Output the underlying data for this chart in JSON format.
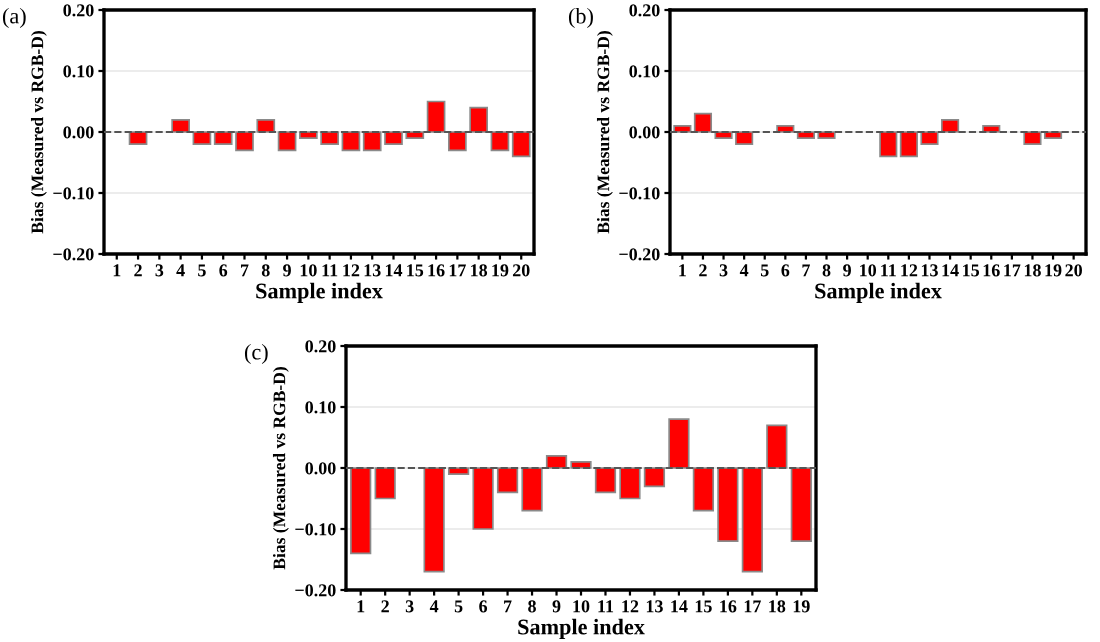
{
  "chart_data": [
    {
      "type": "bar",
      "title": "(a)",
      "xlabel": "Sample index",
      "ylabel": "Bias (Measured vs RGB-D)",
      "categories": [
        "1",
        "2",
        "3",
        "4",
        "5",
        "6",
        "7",
        "8",
        "9",
        "10",
        "11",
        "12",
        "13",
        "14",
        "15",
        "16",
        "17",
        "18",
        "19",
        "20"
      ],
      "values": [
        0,
        -0.02,
        0,
        0.02,
        -0.02,
        -0.02,
        -0.03,
        0.02,
        -0.03,
        -0.01,
        -0.02,
        -0.03,
        -0.03,
        -0.02,
        -0.01,
        0.05,
        -0.03,
        0.04,
        -0.03,
        -0.04
      ],
      "color": "#ff0000",
      "ylim": [
        -0.2,
        0.2
      ],
      "yticks": [
        {
          "value": -0.2,
          "label": "−0.20"
        },
        {
          "value": -0.1,
          "label": "−0.10"
        },
        {
          "value": 0,
          "label": "0.00"
        },
        {
          "value": 0.1,
          "label": "0.10"
        },
        {
          "value": 0.2,
          "label": "0.20"
        }
      ],
      "grid": "y",
      "ref_lines": [
        {
          "axis": "y",
          "value": 0,
          "line_style": "dashed",
          "color": "#555555"
        }
      ]
    },
    {
      "type": "bar",
      "title": "(b)",
      "xlabel": "Sample index",
      "ylabel": "Bias (Measured vs RGB-D)",
      "categories": [
        "1",
        "2",
        "3",
        "4",
        "5",
        "6",
        "7",
        "8",
        "9",
        "10",
        "11",
        "12",
        "13",
        "14",
        "15",
        "16",
        "17",
        "18",
        "19",
        "20"
      ],
      "values": [
        0.01,
        0.03,
        -0.01,
        -0.02,
        0,
        0.01,
        -0.01,
        -0.01,
        0,
        0,
        -0.04,
        -0.04,
        -0.02,
        0.02,
        0,
        0.01,
        0,
        -0.02,
        -0.01,
        0
      ],
      "color": "#ff0000",
      "ylim": [
        -0.2,
        0.2
      ],
      "yticks": [
        {
          "value": -0.2,
          "label": "−0.20"
        },
        {
          "value": -0.1,
          "label": "−0.10"
        },
        {
          "value": 0,
          "label": "0.00"
        },
        {
          "value": 0.1,
          "label": "0.10"
        },
        {
          "value": 0.2,
          "label": "0.20"
        }
      ],
      "grid": "y",
      "ref_lines": [
        {
          "axis": "y",
          "value": 0,
          "line_style": "dashed",
          "color": "#555555"
        }
      ]
    },
    {
      "type": "bar",
      "title": "(c)",
      "xlabel": "Sample index",
      "ylabel": "Bias (Measured vs RGB-D)",
      "categories": [
        "1",
        "2",
        "3",
        "4",
        "5",
        "6",
        "7",
        "8",
        "9",
        "10",
        "11",
        "12",
        "13",
        "14",
        "15",
        "16",
        "17",
        "18",
        "19"
      ],
      "values": [
        -0.14,
        -0.05,
        0,
        -0.17,
        -0.01,
        -0.1,
        -0.04,
        -0.07,
        0.02,
        0.01,
        -0.04,
        -0.05,
        -0.03,
        0.08,
        -0.07,
        -0.12,
        -0.17,
        0.07,
        -0.12
      ],
      "color": "#ff0000",
      "ylim": [
        -0.2,
        0.2
      ],
      "yticks": [
        {
          "value": -0.2,
          "label": "−0.20"
        },
        {
          "value": -0.1,
          "label": "−0.10"
        },
        {
          "value": 0,
          "label": "0.00"
        },
        {
          "value": 0.1,
          "label": "0.10"
        },
        {
          "value": 0.2,
          "label": "0.20"
        }
      ],
      "grid": "y",
      "ref_lines": [
        {
          "axis": "y",
          "value": 0,
          "line_style": "dashed",
          "color": "#555555"
        }
      ]
    }
  ]
}
